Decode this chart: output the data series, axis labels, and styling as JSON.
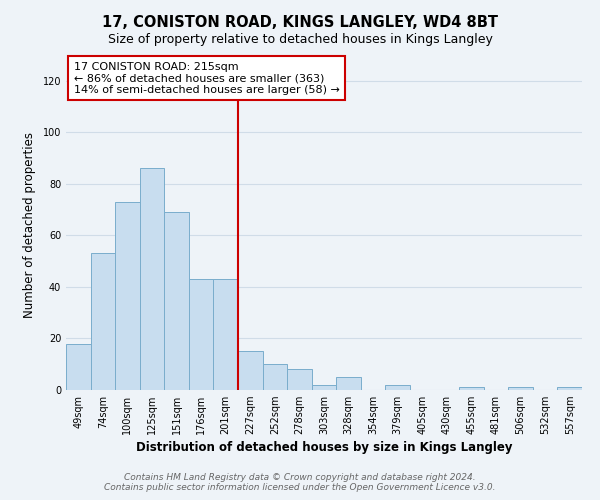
{
  "title": "17, CONISTON ROAD, KINGS LANGLEY, WD4 8BT",
  "subtitle": "Size of property relative to detached houses in Kings Langley",
  "xlabel": "Distribution of detached houses by size in Kings Langley",
  "ylabel": "Number of detached properties",
  "bar_color": "#c8ddef",
  "bar_edge_color": "#7aadcc",
  "categories": [
    "49sqm",
    "74sqm",
    "100sqm",
    "125sqm",
    "151sqm",
    "176sqm",
    "201sqm",
    "227sqm",
    "252sqm",
    "278sqm",
    "303sqm",
    "328sqm",
    "354sqm",
    "379sqm",
    "405sqm",
    "430sqm",
    "455sqm",
    "481sqm",
    "506sqm",
    "532sqm",
    "557sqm"
  ],
  "values": [
    18,
    53,
    73,
    86,
    69,
    43,
    43,
    15,
    10,
    8,
    2,
    5,
    0,
    2,
    0,
    0,
    1,
    0,
    1,
    0,
    1
  ],
  "vline_color": "#cc0000",
  "annotation_box_text": "17 CONISTON ROAD: 215sqm\n← 86% of detached houses are smaller (363)\n14% of semi-detached houses are larger (58) →",
  "ylim": [
    0,
    128
  ],
  "yticks": [
    0,
    20,
    40,
    60,
    80,
    100,
    120
  ],
  "footer_line1": "Contains HM Land Registry data © Crown copyright and database right 2024.",
  "footer_line2": "Contains public sector information licensed under the Open Government Licence v3.0.",
  "background_color": "#eef3f8",
  "grid_color": "#d0dce8",
  "title_fontsize": 10.5,
  "subtitle_fontsize": 9,
  "axis_label_fontsize": 8.5,
  "tick_fontsize": 7,
  "annotation_fontsize": 8,
  "footer_fontsize": 6.5
}
